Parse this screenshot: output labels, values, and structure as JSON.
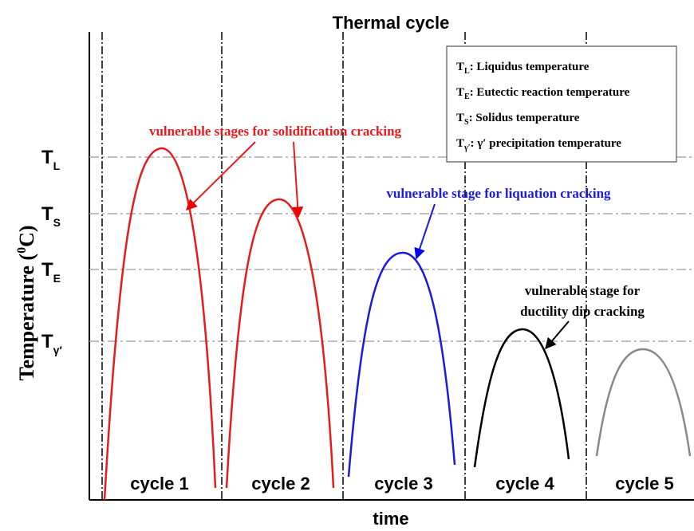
{
  "title": "Thermal cycle",
  "x_axis_label": "time",
  "y_axis_label": {
    "main": "Temperature (",
    "sup": "0",
    "end": "C)"
  },
  "levels": [
    {
      "symbol": "T",
      "sub": "L"
    },
    {
      "symbol": "T",
      "sub": "S"
    },
    {
      "symbol": "T",
      "sub": "E"
    },
    {
      "symbol": "T",
      "sub": "γ′"
    }
  ],
  "cycles": [
    "cycle 1",
    "cycle 2",
    "cycle 3",
    "cycle 4",
    "cycle 5"
  ],
  "legend": [
    {
      "symbol": "T",
      "sub": "L",
      "text": ": Liquidus temperature"
    },
    {
      "symbol": "T",
      "sub": "E",
      "text": ": Eutectic reaction temperature"
    },
    {
      "symbol": "T",
      "sub": "S",
      "text": ": Solidus temperature"
    },
    {
      "symbol": "T",
      "sub": "γ′",
      "text": ": γ′ precipitation temperature"
    }
  ],
  "annotations": {
    "solidification": "vulnerable stages for solidification cracking",
    "liquation": "vulnerable stage for  liquation cracking",
    "ductility": [
      "vulnerable stage for",
      "ductility dip cracking"
    ]
  }
}
